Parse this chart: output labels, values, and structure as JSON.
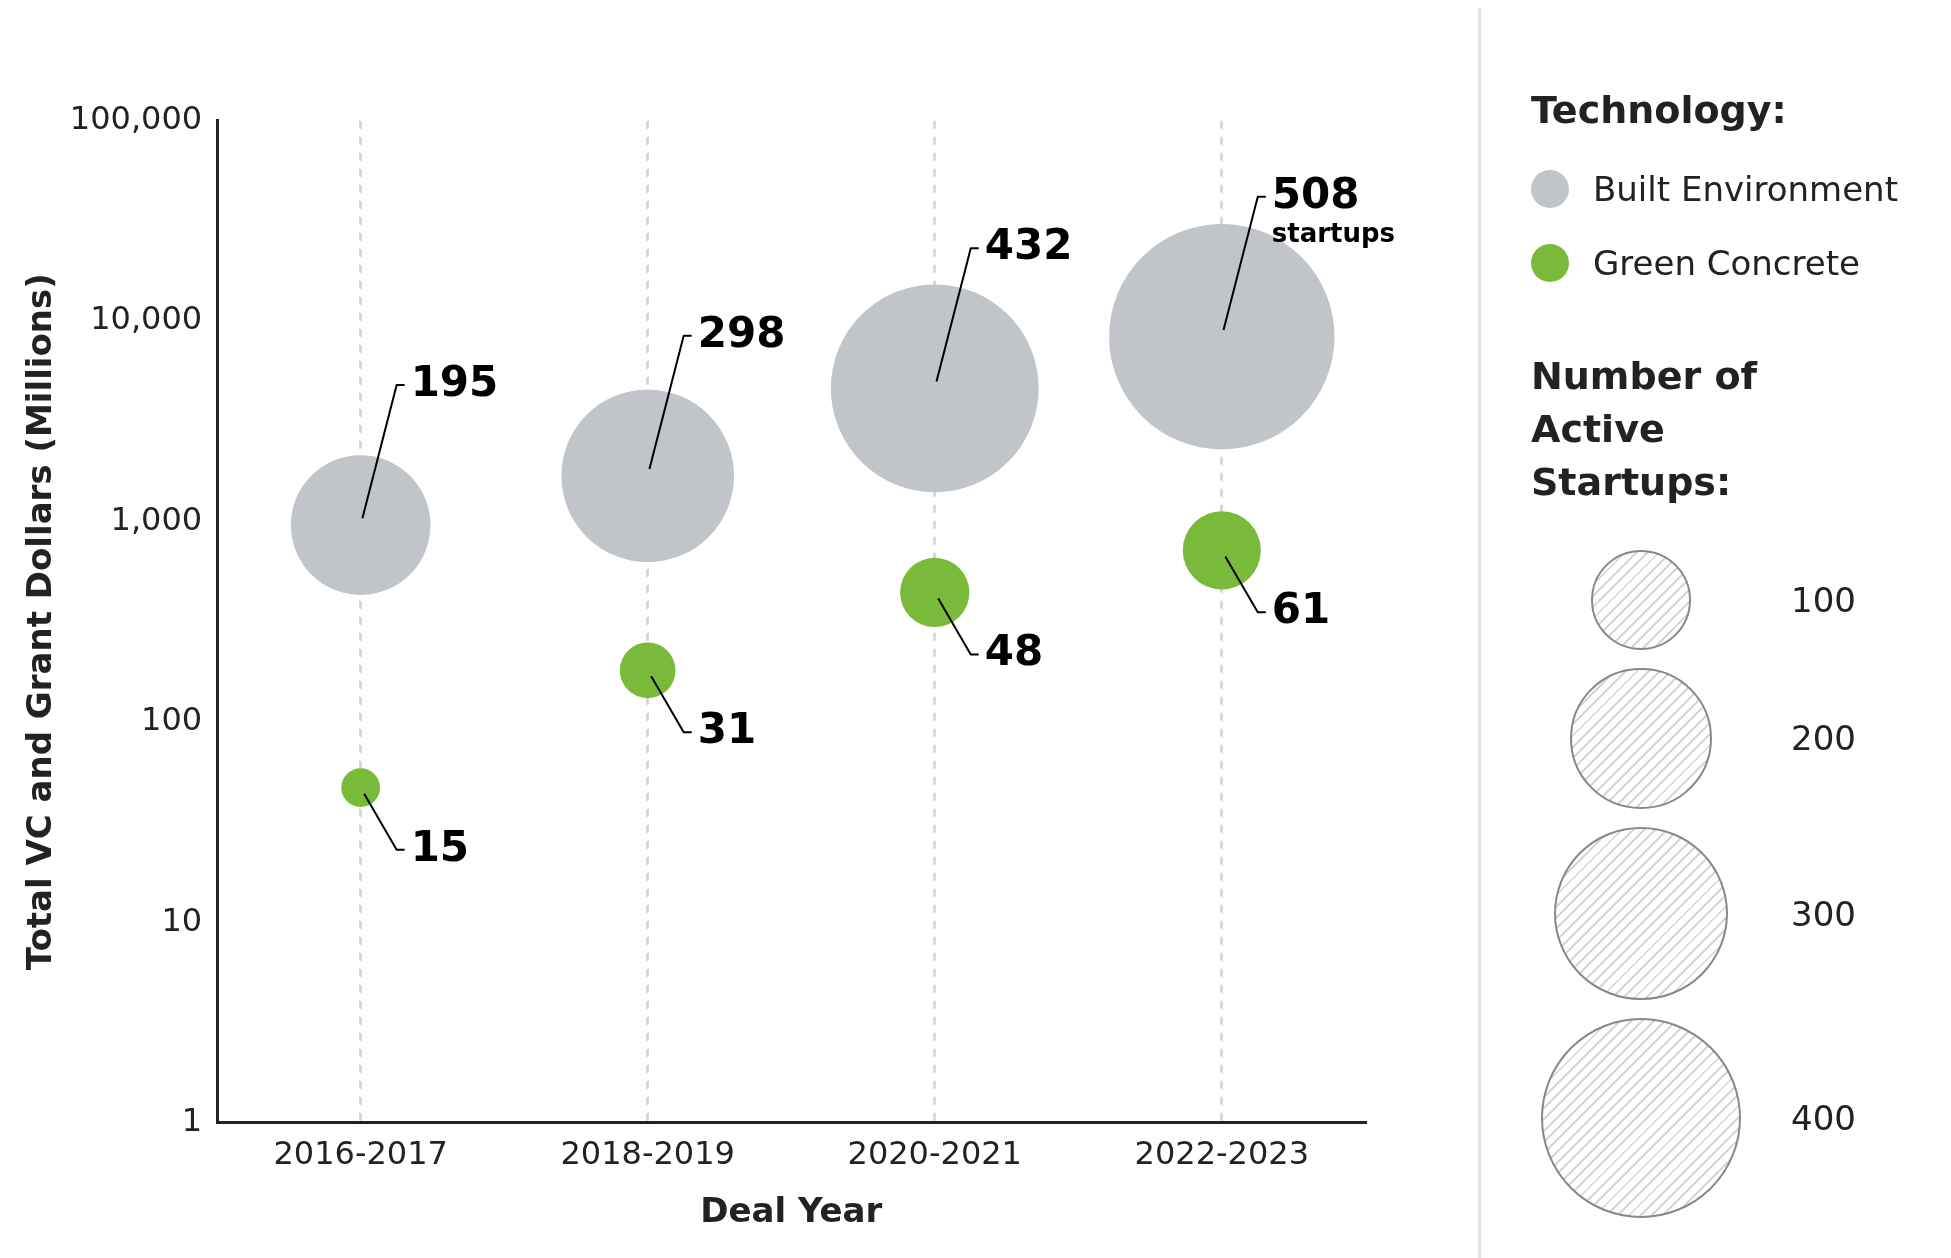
{
  "chart_data": {
    "type": "bubble",
    "xlabel": "Deal Year",
    "ylabel": "Total VC and Grant Dollars (Millions)",
    "legend_title": "Technology:",
    "categories": [
      "2016-2017",
      "2018-2019",
      "2020-2021",
      "2022-2023"
    ],
    "series": [
      {
        "name": "Built Environment",
        "color": "#c1c4c8",
        "values": [
          960,
          1690,
          4620,
          8360
        ],
        "sizes": [
          195,
          298,
          432,
          508
        ],
        "value_labels": [
          "195",
          "298",
          "432",
          "508"
        ]
      },
      {
        "name": "Green Concrete",
        "color": "#7aba3a",
        "values": [
          47,
          181,
          443,
          718
        ],
        "sizes": [
          15,
          31,
          48,
          61
        ],
        "value_labels": [
          "15",
          "31",
          "48",
          "61"
        ]
      }
    ],
    "size_legend": [
      100,
      200,
      300,
      400
    ],
    "annotations": [
      {
        "text": "startups",
        "x": "2022-2023",
        "y": 8360
      },
      "Number of Active Startups:"
    ],
    "log": "y",
    "ylim": [
      1,
      100000
    ],
    "yticks": [
      1,
      10,
      100,
      {
        "value": 1000,
        "label": "1,000"
      },
      {
        "value": 10000,
        "label": "10,000"
      },
      {
        "value": 100000,
        "label": "100,000"
      }
    ],
    "grid": "x",
    "legend": "right"
  }
}
